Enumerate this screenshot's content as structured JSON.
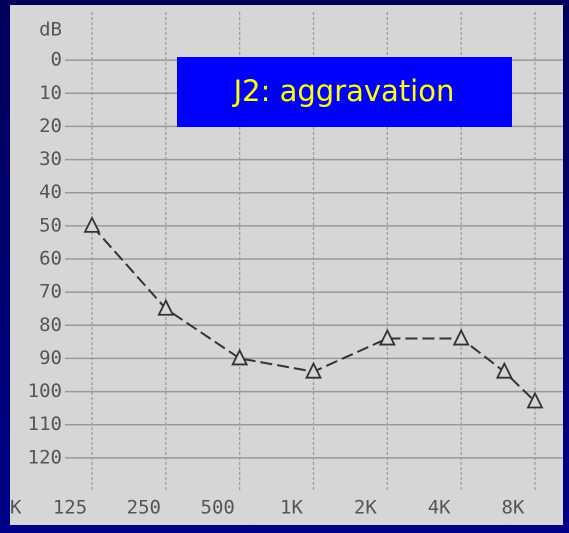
{
  "chart_data": {
    "type": "line",
    "y_label": "dB",
    "annotation": "J2: aggravation",
    "x_fragment": "K",
    "x": [
      125,
      250,
      500,
      1000,
      2000,
      4000,
      6000,
      8000
    ],
    "series": [
      {
        "name": "J2",
        "color": "#333333",
        "values": [
          50,
          75,
          90,
          94,
          84,
          84,
          94,
          103
        ]
      }
    ],
    "xlim": [
      125,
      8000
    ],
    "xscale": "log",
    "xticks": [
      125,
      250,
      500,
      {
        "value": 1000,
        "label": "1K"
      },
      {
        "value": 2000,
        "label": "2K"
      },
      {
        "value": 4000,
        "label": "4K"
      },
      {
        "value": 8000,
        "label": "8K"
      }
    ],
    "ylim": [
      -10,
      130
    ],
    "yinvert": true,
    "yticks": [
      0,
      10,
      20,
      30,
      40,
      50,
      60,
      70,
      80,
      90,
      100,
      110,
      120
    ],
    "grid": true
  }
}
